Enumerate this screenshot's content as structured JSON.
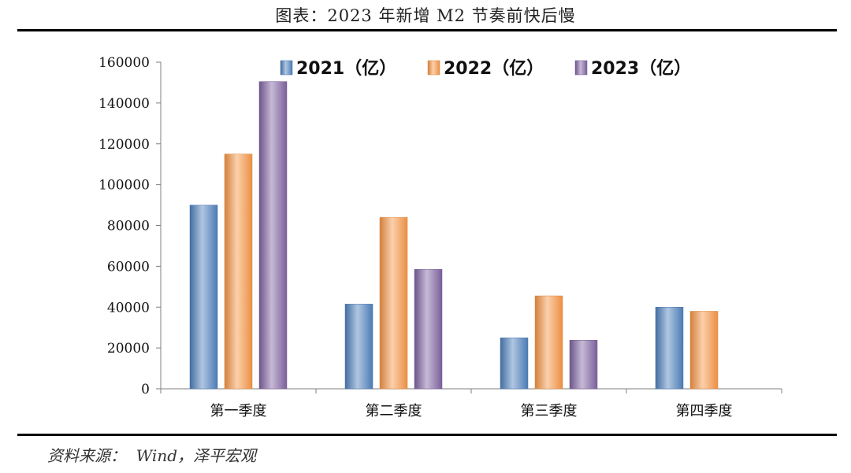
{
  "header": {
    "title": "图表：2023 年新增 M2 节奏前快后慢"
  },
  "footer": {
    "source": "资料来源：  Wind，泽平宏观"
  },
  "chart_data": {
    "type": "bar",
    "categories": [
      "第一季度",
      "第二季度",
      "第三季度",
      "第四季度"
    ],
    "series": [
      {
        "name": "2021（亿）",
        "values": [
          90000,
          41500,
          25000,
          40000
        ],
        "color": "#4f81bd"
      },
      {
        "name": "2022（亿）",
        "values": [
          115000,
          84000,
          45500,
          38000
        ],
        "color": "#f79646"
      },
      {
        "name": "2023（亿）",
        "values": [
          150500,
          58500,
          23800,
          null
        ],
        "color": "#8064a2"
      }
    ],
    "ylim": [
      0,
      160000
    ],
    "yticks": [
      0,
      20000,
      40000,
      60000,
      80000,
      100000,
      120000,
      140000,
      160000
    ],
    "legend_position": "top",
    "grid": false
  }
}
